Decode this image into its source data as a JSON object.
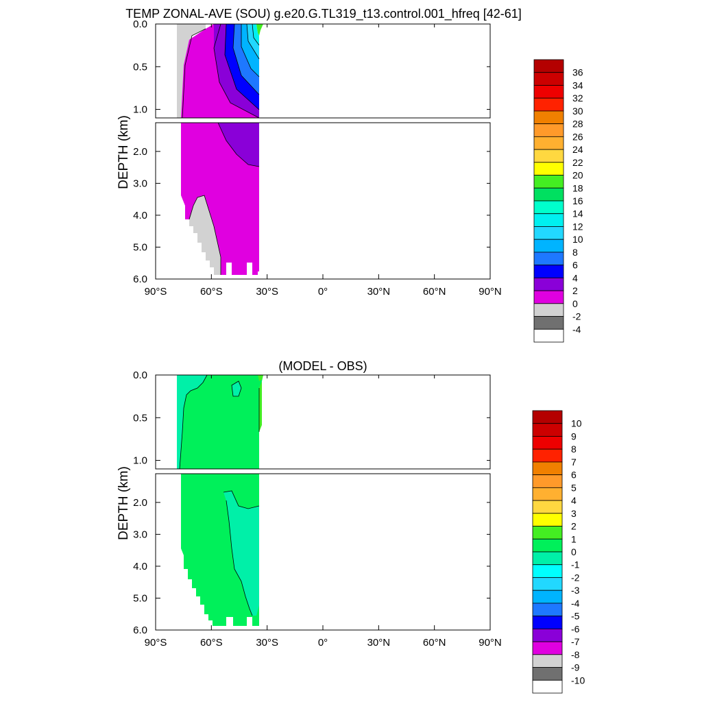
{
  "chart_data": [
    {
      "type": "contour",
      "title": "TEMP ZONAL-AVE (SOU) g.e20.G.TL319_t13.control.001_hfreq [42-61]",
      "ylabel": "DEPTH (km)",
      "xlabel": "",
      "x_ticks": [
        "90°S",
        "60°S",
        "30°S",
        "0°",
        "30°N",
        "60°N",
        "90°N"
      ],
      "x_tick_values": [
        -90,
        -60,
        -30,
        0,
        30,
        60,
        90
      ],
      "upper_panel": {
        "ylim": [
          0.0,
          1.1
        ],
        "y_ticks": [
          "0.0",
          "0.5",
          "1.0"
        ],
        "y_tick_values": [
          0.0,
          0.5,
          1.0
        ]
      },
      "lower_panel": {
        "ylim": [
          1.1,
          6.0
        ],
        "y_ticks": [
          "2.0",
          "3.0",
          "4.0",
          "5.0",
          "6.0"
        ],
        "y_tick_values": [
          2.0,
          3.0,
          4.0,
          5.0,
          6.0
        ]
      },
      "colorbar": {
        "labels": [
          "36",
          "34",
          "32",
          "30",
          "28",
          "26",
          "24",
          "22",
          "20",
          "18",
          "16",
          "14",
          "12",
          "10",
          "8",
          "6",
          "4",
          "2",
          "0",
          "-2",
          "-4"
        ],
        "colors": [
          "#b40000",
          "#cc0000",
          "#ee0000",
          "#ff2200",
          "#f08000",
          "#ff9a2a",
          "#ffb030",
          "#ffd840",
          "#ffff00",
          "#44ee22",
          "#00e060",
          "#00ffcc",
          "#00f0f0",
          "#22d8ff",
          "#00b4ff",
          "#1e78ff",
          "#0000ff",
          "#8a00d8",
          "#e000e0",
          "#d2d2d2",
          "#707070",
          "#ffffff"
        ]
      }
    },
    {
      "type": "contour",
      "title": "(MODEL - OBS)",
      "ylabel": "DEPTH (km)",
      "xlabel": "",
      "x_ticks": [
        "90°S",
        "60°S",
        "30°S",
        "0°",
        "30°N",
        "60°N",
        "90°N"
      ],
      "x_tick_values": [
        -90,
        -60,
        -30,
        0,
        30,
        60,
        90
      ],
      "upper_panel": {
        "ylim": [
          0.0,
          1.1
        ],
        "y_ticks": [
          "0.0",
          "0.5",
          "1.0"
        ],
        "y_tick_values": [
          0.0,
          0.5,
          1.0
        ]
      },
      "lower_panel": {
        "ylim": [
          1.1,
          6.0
        ],
        "y_ticks": [
          "2.0",
          "3.0",
          "4.0",
          "5.0",
          "6.0"
        ],
        "y_tick_values": [
          2.0,
          3.0,
          4.0,
          5.0,
          6.0
        ]
      },
      "colorbar": {
        "labels": [
          "10",
          "9",
          "8",
          "7",
          "6",
          "5",
          "4",
          "3",
          "2",
          "1",
          "0",
          "-1",
          "-2",
          "-3",
          "-4",
          "-5",
          "-6",
          "-7",
          "-8",
          "-9",
          "-10"
        ],
        "colors": [
          "#b40000",
          "#cc0000",
          "#ee0000",
          "#ff2200",
          "#f08000",
          "#ff9a2a",
          "#ffb030",
          "#ffd840",
          "#ffff00",
          "#44ee22",
          "#00f05a",
          "#00f0a8",
          "#00ffff",
          "#22d8ff",
          "#00b4ff",
          "#1e78ff",
          "#0000ff",
          "#8a00d8",
          "#e000e0",
          "#d2d2d2",
          "#707070",
          "#ffffff"
        ]
      }
    }
  ]
}
